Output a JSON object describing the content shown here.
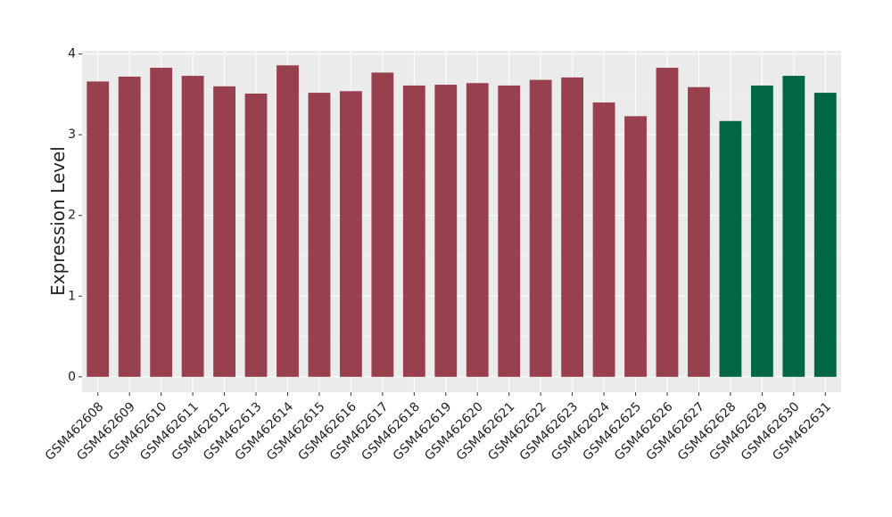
{
  "chart_data": {
    "type": "bar",
    "y_label": "Expression Level",
    "categories": [
      "GSM462608",
      "GSM462609",
      "GSM462610",
      "GSM462611",
      "GSM462612",
      "GSM462613",
      "GSM462614",
      "GSM462615",
      "GSM462616",
      "GSM462617",
      "GSM462618",
      "GSM462619",
      "GSM462620",
      "GSM462621",
      "GSM462622",
      "GSM462623",
      "GSM462624",
      "GSM462625",
      "GSM462626",
      "GSM462627",
      "GSM462628",
      "GSM462629",
      "GSM462630",
      "GSM462631"
    ],
    "values": [
      3.66,
      3.72,
      3.83,
      3.73,
      3.6,
      3.51,
      3.86,
      3.52,
      3.54,
      3.77,
      3.61,
      3.62,
      3.64,
      3.61,
      3.68,
      3.71,
      3.4,
      3.23,
      3.83,
      3.59,
      3.17,
      3.61,
      3.73,
      3.52
    ],
    "colors": [
      "#99404f",
      "#99404f",
      "#99404f",
      "#99404f",
      "#99404f",
      "#99404f",
      "#99404f",
      "#99404f",
      "#99404f",
      "#99404f",
      "#99404f",
      "#99404f",
      "#99404f",
      "#99404f",
      "#99404f",
      "#99404f",
      "#99404f",
      "#99404f",
      "#99404f",
      "#99404f",
      "#006644",
      "#006644",
      "#006644",
      "#006644"
    ],
    "ylim": [
      -0.19,
      4.04
    ],
    "yticks": [
      0,
      1,
      2,
      3,
      4
    ],
    "grid": true
  }
}
